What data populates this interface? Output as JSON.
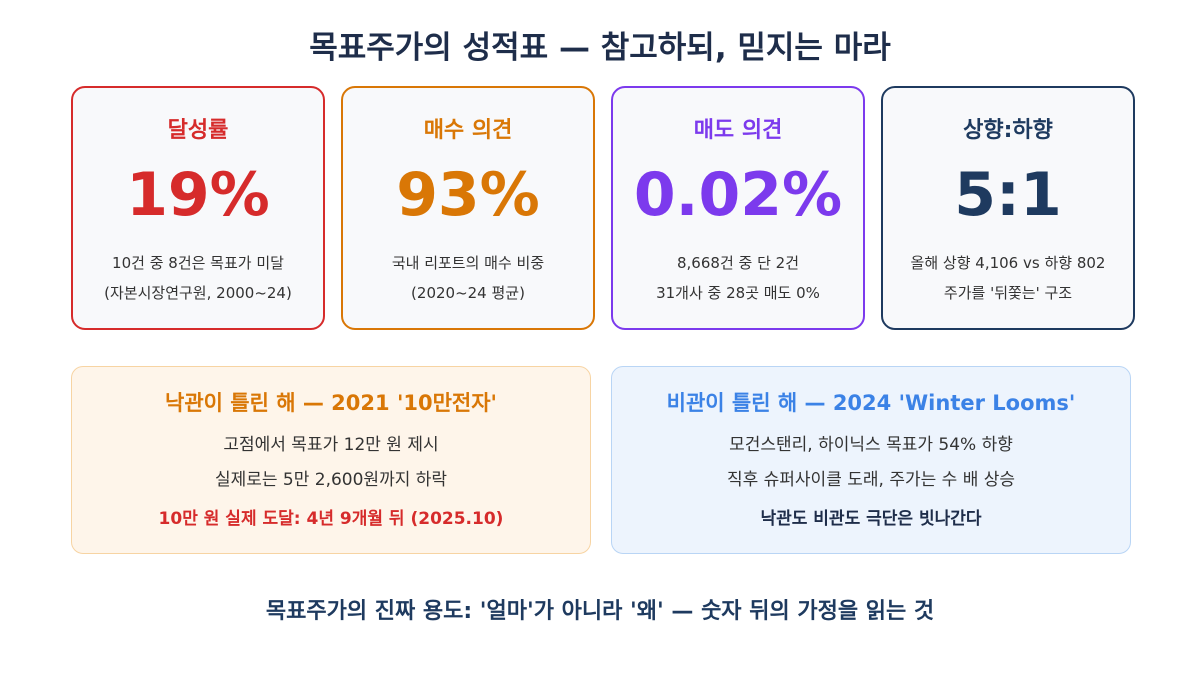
{
  "header": {
    "title": "목표주가의 성적표 — 참고하되, 믿지는 마라"
  },
  "cards": [
    {
      "label": "달성률",
      "value": "19%",
      "lines": [
        "10건 중 8건은 목표가 미달",
        "(자본시장연구원, 2000~24)"
      ]
    },
    {
      "label": "매수 의견",
      "value": "93%",
      "lines": [
        "국내 리포트의 매수 비중",
        "(2020~24 평균)"
      ]
    },
    {
      "label": "매도 의견",
      "value": "0.02%",
      "lines": [
        "8,668건 중 단 2건",
        "31개사 중 28곳 매도 0%"
      ]
    },
    {
      "label": "상향:하향",
      "value": "5:1",
      "lines": [
        "올해 상향 4,106 vs 하향 802",
        "주가를 '뒤쫓는' 구조"
      ]
    }
  ],
  "cases": [
    {
      "title": "낙관이 틀린 해 — 2021 '10만전자'",
      "lines": [
        "고점에서 목표가 12만 원 제시",
        "실제로는 5만 2,600원까지 하락"
      ],
      "emphasis": "10만 원 실제 도달: 4년 9개월 뒤 (2025.10)"
    },
    {
      "title": "비관이 틀린 해 — 2024 'Winter Looms'",
      "lines": [
        "모건스탠리, 하이닉스 목표가 54% 하향",
        "직후 슈퍼사이클 도래, 주가는 수 배 상승"
      ],
      "emphasis": "낙관도 비관도 극단은 빗나간다"
    }
  ],
  "footer": {
    "text": "목표주가의 진짜 용도: '얼마'가 아니라 '왜' — 숫자 뒤의 가정을 읽는 것"
  }
}
